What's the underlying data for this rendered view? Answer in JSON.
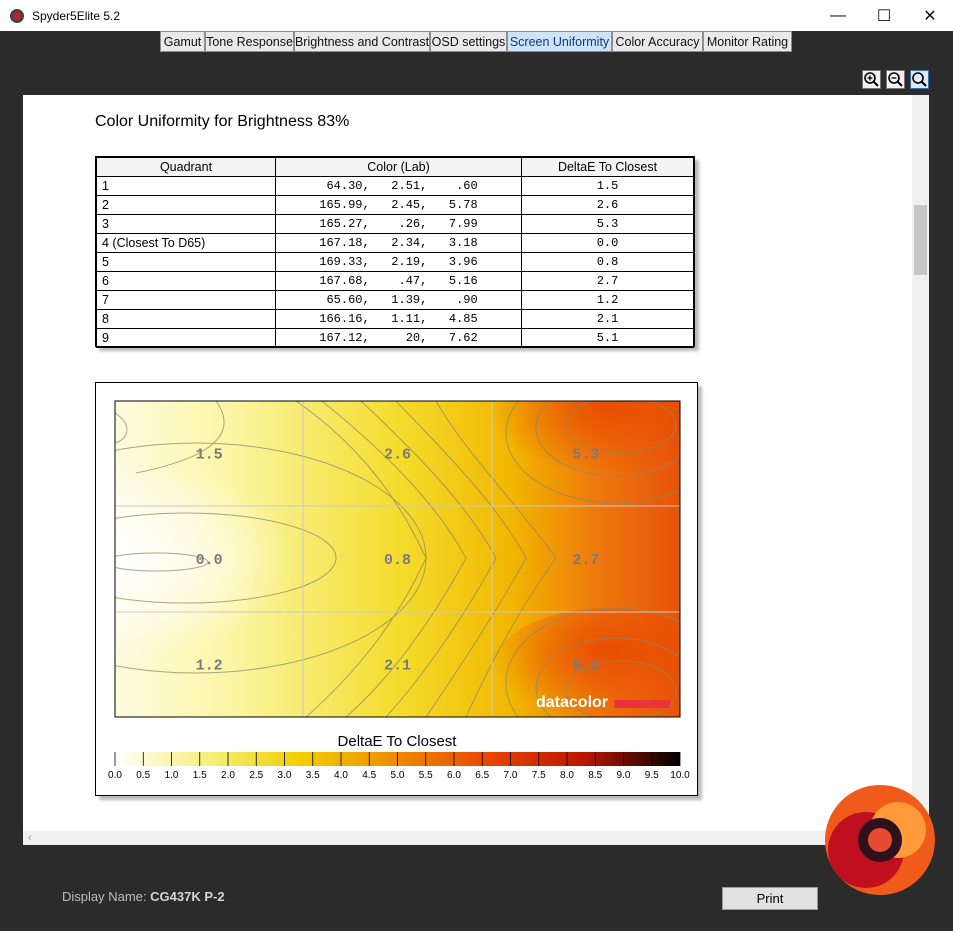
{
  "window": {
    "title": "Spyder5Elite 5.2"
  },
  "tabs": [
    {
      "label": "Gamut",
      "active": false
    },
    {
      "label": "Tone Response",
      "active": false
    },
    {
      "label": "Brightness and Contrast",
      "active": false
    },
    {
      "label": "OSD settings",
      "active": false
    },
    {
      "label": "Screen Uniformity",
      "active": true
    },
    {
      "label": "Color Accuracy",
      "active": false
    },
    {
      "label": "Monitor Rating",
      "active": false
    }
  ],
  "report": {
    "title": "Color Uniformity for Brightness 83%",
    "columns": [
      "Quadrant",
      "Color (Lab)",
      "DeltaE To Closest"
    ],
    "rows": [
      {
        "quadrant": "1",
        "lab": " 64.30,   2.51,    .60",
        "delta": "1.5"
      },
      {
        "quadrant": "2",
        "lab": "165.99,   2.45,   5.78",
        "delta": "2.6"
      },
      {
        "quadrant": "3",
        "lab": "165.27,    .26,   7.99",
        "delta": "5.3"
      },
      {
        "quadrant": "4 (Closest To D65)",
        "lab": "167.18,   2.34,   3.18",
        "delta": "0.0"
      },
      {
        "quadrant": "5",
        "lab": "169.33,   2.19,   3.96",
        "delta": "0.8"
      },
      {
        "quadrant": "6",
        "lab": "167.68,    .47,   5.16",
        "delta": "2.7"
      },
      {
        "quadrant": "7",
        "lab": " 65.60,   1.39,    .90",
        "delta": "1.2"
      },
      {
        "quadrant": "8",
        "lab": "166.16,   1.11,   4.85",
        "delta": "2.1"
      },
      {
        "quadrant": "9",
        "lab": "167.12,     20,   7.62",
        "delta": "5.1"
      }
    ]
  },
  "chart_data": {
    "type": "heatmap",
    "grid": [
      [
        1.5,
        2.6,
        5.3
      ],
      [
        0.0,
        0.8,
        2.7
      ],
      [
        1.2,
        2.1,
        5.1
      ]
    ],
    "title": "DeltaE To Closest",
    "scale_ticks": [
      "0.0",
      "0.5",
      "1.0",
      "1.5",
      "2.0",
      "2.5",
      "3.0",
      "3.5",
      "4.0",
      "4.5",
      "5.0",
      "5.5",
      "6.0",
      "6.5",
      "7.0",
      "7.5",
      "8.0",
      "8.5",
      "9.0",
      "9.5",
      "10.0"
    ],
    "scale_range": [
      0,
      10
    ],
    "colors": [
      "#ffffff",
      "#f5f07a",
      "#f2cc00",
      "#ee8a00",
      "#e84400",
      "#b81500",
      "#000000"
    ]
  },
  "brand": {
    "text": "datacolor",
    "accent": "#e8323c"
  },
  "footer": {
    "display_label": "Display Name:",
    "display_value": "CG437K P-2",
    "print_label": "Print"
  }
}
